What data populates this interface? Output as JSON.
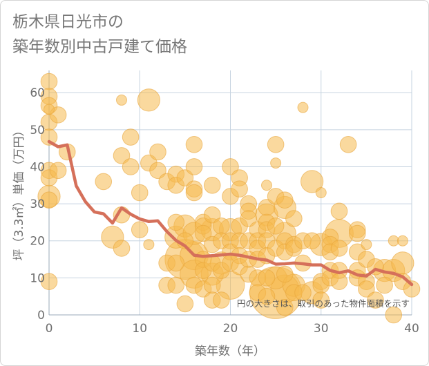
{
  "title_lines": [
    "栃木県日光市の",
    "築年数別中古戸建て価格"
  ],
  "colors": {
    "bubble_fill": "#f5b94e",
    "bubble_stroke": "#e8a53a",
    "line": "#d5705a",
    "grid": "#c6d3e0",
    "plot_border": "#c6d3e0"
  },
  "chart_data": {
    "type": "scatter",
    "title": "栃木県日光市の築年数別中古戸建て価格",
    "xlabel": "築年数（年）",
    "ylabel": "坪（3.3㎡）単価（万円）",
    "xlim": [
      0,
      40
    ],
    "ylim": [
      0,
      66
    ],
    "xticks": [
      0,
      10,
      20,
      30,
      40
    ],
    "yticks": [
      0,
      10,
      20,
      30,
      40,
      50,
      60
    ],
    "grid": true,
    "note": "円の大きさは、取引のあった物件面積を示す",
    "scatter_points": [
      {
        "x": 0,
        "y": 63,
        "s": 2
      },
      {
        "x": 0,
        "y": 59,
        "s": 2
      },
      {
        "x": 0,
        "y": 56.5,
        "s": 2
      },
      {
        "x": 0,
        "y": 55.5,
        "s": 1
      },
      {
        "x": 0,
        "y": 52,
        "s": 2
      },
      {
        "x": 0,
        "y": 48,
        "s": 2
      },
      {
        "x": 0,
        "y": 39,
        "s": 2
      },
      {
        "x": 0,
        "y": 37,
        "s": 2
      },
      {
        "x": 0,
        "y": 32,
        "s": 3
      },
      {
        "x": 0,
        "y": 31,
        "s": 2
      },
      {
        "x": 0,
        "y": 9,
        "s": 2
      },
      {
        "x": 1,
        "y": 54,
        "s": 2
      },
      {
        "x": 1,
        "y": 39,
        "s": 2
      },
      {
        "x": 2,
        "y": 44,
        "s": 2
      },
      {
        "x": 6,
        "y": 36,
        "s": 2
      },
      {
        "x": 7,
        "y": 21,
        "s": 3
      },
      {
        "x": 8,
        "y": 58,
        "s": 1
      },
      {
        "x": 8,
        "y": 43,
        "s": 2
      },
      {
        "x": 8,
        "y": 27,
        "s": 2
      },
      {
        "x": 8,
        "y": 18,
        "s": 2
      },
      {
        "x": 9,
        "y": 48,
        "s": 2
      },
      {
        "x": 9,
        "y": 40,
        "s": 2
      },
      {
        "x": 10,
        "y": 33,
        "s": 2
      },
      {
        "x": 10,
        "y": 23,
        "s": 2
      },
      {
        "x": 11,
        "y": 58,
        "s": 3
      },
      {
        "x": 11,
        "y": 41,
        "s": 2
      },
      {
        "x": 11,
        "y": 19,
        "s": 1
      },
      {
        "x": 12,
        "y": 44,
        "s": 2
      },
      {
        "x": 12,
        "y": 39,
        "s": 2
      },
      {
        "x": 13,
        "y": 36,
        "s": 2
      },
      {
        "x": 13,
        "y": 14,
        "s": 2
      },
      {
        "x": 13,
        "y": 8,
        "s": 2
      },
      {
        "x": 14,
        "y": 38,
        "s": 2
      },
      {
        "x": 14,
        "y": 35,
        "s": 2
      },
      {
        "x": 14,
        "y": 25,
        "s": 2
      },
      {
        "x": 14,
        "y": 21,
        "s": 3
      },
      {
        "x": 14,
        "y": 14,
        "s": 2
      },
      {
        "x": 14,
        "y": 8,
        "s": 2
      },
      {
        "x": 15,
        "y": 37,
        "s": 2
      },
      {
        "x": 15,
        "y": 24,
        "s": 3
      },
      {
        "x": 15,
        "y": 20,
        "s": 2
      },
      {
        "x": 15,
        "y": 15,
        "s": 6
      },
      {
        "x": 15,
        "y": 3,
        "s": 2
      },
      {
        "x": 16,
        "y": 46,
        "s": 2
      },
      {
        "x": 16,
        "y": 40,
        "s": 2
      },
      {
        "x": 16,
        "y": 34,
        "s": 2
      },
      {
        "x": 16,
        "y": 33,
        "s": 2
      },
      {
        "x": 16,
        "y": 22,
        "s": 3
      },
      {
        "x": 16,
        "y": 16,
        "s": 4
      },
      {
        "x": 16,
        "y": 11,
        "s": 4
      },
      {
        "x": 16,
        "y": 8,
        "s": 2
      },
      {
        "x": 17,
        "y": 25,
        "s": 2
      },
      {
        "x": 17,
        "y": 24,
        "s": 2
      },
      {
        "x": 17,
        "y": 22,
        "s": 2
      },
      {
        "x": 17,
        "y": 15,
        "s": 2
      },
      {
        "x": 17,
        "y": 12,
        "s": 2
      },
      {
        "x": 17,
        "y": 7,
        "s": 2
      },
      {
        "x": 18,
        "y": 35,
        "s": 2
      },
      {
        "x": 18,
        "y": 27,
        "s": 2
      },
      {
        "x": 18,
        "y": 23,
        "s": 3
      },
      {
        "x": 18,
        "y": 19,
        "s": 2
      },
      {
        "x": 18,
        "y": 14,
        "s": 2
      },
      {
        "x": 18,
        "y": 11,
        "s": 3
      },
      {
        "x": 18,
        "y": 8,
        "s": 2
      },
      {
        "x": 18,
        "y": 4,
        "s": 2
      },
      {
        "x": 19,
        "y": 24,
        "s": 2
      },
      {
        "x": 19,
        "y": 20,
        "s": 2
      },
      {
        "x": 19,
        "y": 14,
        "s": 3
      },
      {
        "x": 19,
        "y": 12,
        "s": 2
      },
      {
        "x": 19,
        "y": 4,
        "s": 2
      },
      {
        "x": 20,
        "y": 40,
        "s": 2
      },
      {
        "x": 20,
        "y": 32,
        "s": 2
      },
      {
        "x": 20,
        "y": 23,
        "s": 3
      },
      {
        "x": 20,
        "y": 20,
        "s": 2
      },
      {
        "x": 20,
        "y": 17,
        "s": 2
      },
      {
        "x": 20,
        "y": 14,
        "s": 2
      },
      {
        "x": 20,
        "y": 8,
        "s": 4
      },
      {
        "x": 21,
        "y": 37,
        "s": 2
      },
      {
        "x": 21,
        "y": 34,
        "s": 2
      },
      {
        "x": 21,
        "y": 24,
        "s": 2
      },
      {
        "x": 21,
        "y": 20,
        "s": 2
      },
      {
        "x": 21,
        "y": 16,
        "s": 2
      },
      {
        "x": 21,
        "y": 13,
        "s": 2
      },
      {
        "x": 22,
        "y": 30,
        "s": 2
      },
      {
        "x": 22,
        "y": 28,
        "s": 2
      },
      {
        "x": 22,
        "y": 26,
        "s": 2
      },
      {
        "x": 22,
        "y": 20,
        "s": 2
      },
      {
        "x": 22,
        "y": 15,
        "s": 2
      },
      {
        "x": 22,
        "y": 11,
        "s": 2
      },
      {
        "x": 23,
        "y": 23,
        "s": 2
      },
      {
        "x": 23,
        "y": 20,
        "s": 2
      },
      {
        "x": 23,
        "y": 18,
        "s": 2
      },
      {
        "x": 23,
        "y": 15,
        "s": 2
      },
      {
        "x": 23,
        "y": 10,
        "s": 2
      },
      {
        "x": 23,
        "y": 6,
        "s": 2
      },
      {
        "x": 24,
        "y": 35,
        "s": 1
      },
      {
        "x": 24,
        "y": 29,
        "s": 2
      },
      {
        "x": 24,
        "y": 27,
        "s": 3
      },
      {
        "x": 24,
        "y": 25,
        "s": 2
      },
      {
        "x": 24,
        "y": 23,
        "s": 2
      },
      {
        "x": 24,
        "y": 20,
        "s": 2
      },
      {
        "x": 24,
        "y": 16,
        "s": 2
      },
      {
        "x": 24,
        "y": 10,
        "s": 2
      },
      {
        "x": 24,
        "y": 5,
        "s": 2
      },
      {
        "x": 25,
        "y": 46,
        "s": 2
      },
      {
        "x": 25,
        "y": 41,
        "s": 1
      },
      {
        "x": 25,
        "y": 32,
        "s": 2
      },
      {
        "x": 25,
        "y": 24,
        "s": 2
      },
      {
        "x": 25,
        "y": 18,
        "s": 2
      },
      {
        "x": 25,
        "y": 10,
        "s": 3
      },
      {
        "x": 25,
        "y": 6,
        "s": 8
      },
      {
        "x": 26,
        "y": 31,
        "s": 2
      },
      {
        "x": 26,
        "y": 29,
        "s": 3
      },
      {
        "x": 26,
        "y": 22,
        "s": 3
      },
      {
        "x": 26,
        "y": 20,
        "s": 2
      },
      {
        "x": 26,
        "y": 17,
        "s": 2
      },
      {
        "x": 26,
        "y": 11,
        "s": 2
      },
      {
        "x": 26,
        "y": 7,
        "s": 4
      },
      {
        "x": 26,
        "y": 2,
        "s": 2
      },
      {
        "x": 27,
        "y": 26,
        "s": 2
      },
      {
        "x": 27,
        "y": 19,
        "s": 2
      },
      {
        "x": 27,
        "y": 18,
        "s": 2
      },
      {
        "x": 27,
        "y": 8,
        "s": 3
      },
      {
        "x": 27,
        "y": 6,
        "s": 2
      },
      {
        "x": 28,
        "y": 56,
        "s": 1
      },
      {
        "x": 28,
        "y": 20,
        "s": 2
      },
      {
        "x": 28,
        "y": 14,
        "s": 2
      },
      {
        "x": 28,
        "y": 6,
        "s": 2
      },
      {
        "x": 29,
        "y": 36,
        "s": 3
      },
      {
        "x": 29,
        "y": 20,
        "s": 2
      },
      {
        "x": 29,
        "y": 6,
        "s": 3
      },
      {
        "x": 30,
        "y": 33,
        "s": 1
      },
      {
        "x": 30,
        "y": 19,
        "s": 3
      },
      {
        "x": 30,
        "y": 9,
        "s": 2
      },
      {
        "x": 30,
        "y": 8,
        "s": 2
      },
      {
        "x": 30,
        "y": 4,
        "s": 2
      },
      {
        "x": 31,
        "y": 21,
        "s": 2
      },
      {
        "x": 31,
        "y": 19,
        "s": 2
      },
      {
        "x": 31,
        "y": 17,
        "s": 2
      },
      {
        "x": 31,
        "y": 12,
        "s": 2
      },
      {
        "x": 31,
        "y": 10,
        "s": 2
      },
      {
        "x": 32,
        "y": 28,
        "s": 2
      },
      {
        "x": 32,
        "y": 22,
        "s": 4
      },
      {
        "x": 32,
        "y": 18,
        "s": 2
      },
      {
        "x": 32,
        "y": 12,
        "s": 2
      },
      {
        "x": 32,
        "y": 9,
        "s": 2
      },
      {
        "x": 33,
        "y": 46,
        "s": 2
      },
      {
        "x": 34,
        "y": 23,
        "s": 2
      },
      {
        "x": 34,
        "y": 22,
        "s": 2
      },
      {
        "x": 34,
        "y": 17,
        "s": 2
      },
      {
        "x": 34,
        "y": 12,
        "s": 2
      },
      {
        "x": 34,
        "y": 10,
        "s": 2
      },
      {
        "x": 35,
        "y": 19,
        "s": 1
      },
      {
        "x": 35,
        "y": 15,
        "s": 2
      },
      {
        "x": 35,
        "y": 9,
        "s": 2
      },
      {
        "x": 35,
        "y": 7,
        "s": 2
      },
      {
        "x": 36,
        "y": 13,
        "s": 2
      },
      {
        "x": 36,
        "y": 4,
        "s": 2
      },
      {
        "x": 37,
        "y": 12,
        "s": 3
      },
      {
        "x": 37,
        "y": 8,
        "s": 2
      },
      {
        "x": 38,
        "y": 20,
        "s": 1
      },
      {
        "x": 38,
        "y": 12,
        "s": 3
      },
      {
        "x": 38,
        "y": 0,
        "s": 2
      },
      {
        "x": 39,
        "y": 20,
        "s": 1
      },
      {
        "x": 39,
        "y": 14,
        "s": 3
      },
      {
        "x": 39,
        "y": 9,
        "s": 2
      },
      {
        "x": 40,
        "y": 7,
        "s": 2
      }
    ],
    "series": [
      {
        "type": "line",
        "x": [
          0,
          1,
          2,
          3,
          4,
          5,
          6,
          7,
          8,
          9,
          10,
          11,
          12,
          13,
          14,
          15,
          16,
          17,
          18,
          19,
          20,
          21,
          22,
          23,
          24,
          25,
          26,
          27,
          28,
          29,
          30,
          31,
          32,
          33,
          34,
          35,
          36,
          37,
          38,
          39,
          40
        ],
        "values": [
          46.8,
          45.4,
          45.9,
          34.8,
          30.6,
          27.8,
          27.3,
          24.8,
          28.9,
          27.2,
          25.9,
          25.2,
          25.4,
          22.5,
          20.1,
          18.6,
          16.1,
          15.8,
          16.0,
          16.2,
          16.4,
          16.1,
          15.6,
          15.1,
          14.8,
          13.7,
          13.8,
          14.0,
          13.8,
          13.5,
          13.5,
          12.0,
          11.4,
          11.9,
          10.8,
          10.5,
          12.3,
          11.6,
          11.2,
          10.3,
          8.2
        ]
      }
    ]
  }
}
